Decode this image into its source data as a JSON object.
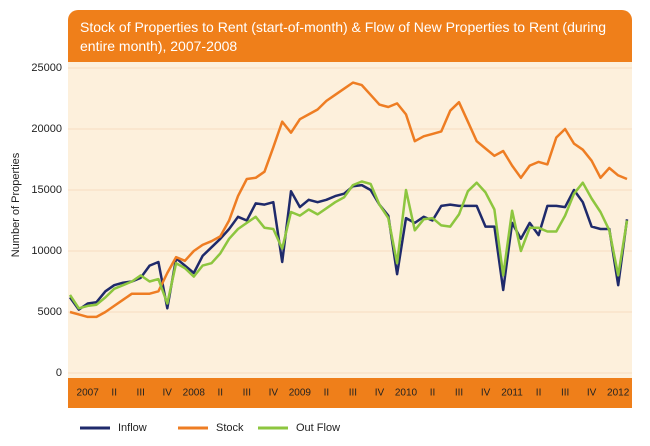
{
  "chart_data": {
    "type": "line",
    "title": "Stock of Properties to Rent (start-of-month) & Flow of New Properties to Rent (during entire month), 2007-2008",
    "y_label": "Number of Properties",
    "categories": [
      null,
      null,
      "2007",
      null,
      null,
      "II",
      null,
      null,
      "III",
      null,
      null,
      "IV",
      null,
      null,
      "2008",
      null,
      null,
      "II",
      null,
      null,
      "III",
      null,
      null,
      "IV",
      null,
      null,
      "2009",
      null,
      null,
      "II",
      null,
      null,
      "III",
      null,
      null,
      "IV",
      null,
      null,
      "2010",
      null,
      null,
      "II",
      null,
      null,
      "III",
      null,
      null,
      "IV",
      null,
      null,
      "2011",
      null,
      null,
      "II",
      null,
      null,
      "III",
      null,
      null,
      "IV",
      null,
      null,
      "2012",
      null
    ],
    "series": [
      {
        "name": "Inflow",
        "color": "#1f2a6b",
        "values": [
          6200,
          5200,
          5700,
          5800,
          6700,
          7200,
          7400,
          7500,
          7800,
          8800,
          9100,
          5300,
          9400,
          8800,
          8200,
          9600,
          10300,
          11000,
          11800,
          12800,
          12500,
          13900,
          13800,
          14000,
          9100,
          14900,
          13600,
          14200,
          14000,
          14200,
          14500,
          14700,
          15300,
          15400,
          15000,
          13800,
          12900,
          8100,
          12700,
          12300,
          12800,
          12500,
          13700,
          13800,
          13700,
          13700,
          13700,
          12000,
          12000,
          6800,
          12300,
          11000,
          12300,
          11300,
          13700,
          13700,
          13600,
          15000,
          14000,
          12000,
          11800,
          11800,
          7200,
          12600
        ]
      },
      {
        "name": "Stock",
        "color": "#ee7d23",
        "values": [
          5000,
          4800,
          4600,
          4600,
          5000,
          5500,
          6000,
          6500,
          6500,
          6500,
          6700,
          8200,
          9500,
          9200,
          10000,
          10500,
          10800,
          11200,
          12500,
          14500,
          15900,
          16000,
          16500,
          18500,
          20600,
          19700,
          20800,
          21200,
          21600,
          22300,
          22800,
          23300,
          23800,
          23600,
          22800,
          22000,
          21800,
          22100,
          21200,
          19000,
          19400,
          19600,
          19800,
          21500,
          22200,
          20600,
          19000,
          18400,
          17800,
          18200,
          17000,
          16000,
          17000,
          17300,
          17100,
          19300,
          20000,
          18800,
          18300,
          17400,
          16000,
          16800,
          16200,
          15900
        ]
      },
      {
        "name": "Out Flow",
        "color": "#8dc63f",
        "values": [
          6400,
          5300,
          5500,
          5600,
          6200,
          6900,
          7200,
          7500,
          8000,
          7500,
          7700,
          5700,
          9000,
          8600,
          7900,
          8800,
          9000,
          9800,
          11000,
          11800,
          12300,
          12800,
          11900,
          11800,
          10200,
          13200,
          12900,
          13400,
          13000,
          13500,
          14000,
          14400,
          15400,
          15700,
          15500,
          13800,
          12700,
          9000,
          15000,
          11700,
          12600,
          12700,
          12100,
          12000,
          13000,
          14900,
          15600,
          14800,
          13400,
          8000,
          13300,
          10000,
          11900,
          11900,
          11600,
          11600,
          12900,
          14700,
          15600,
          14300,
          13200,
          11700,
          8000,
          12500
        ]
      }
    ],
    "ylim": [
      0,
      25000
    ],
    "yticks": [
      0,
      5000,
      10000,
      15000,
      20000,
      25000
    ],
    "grid": true
  }
}
